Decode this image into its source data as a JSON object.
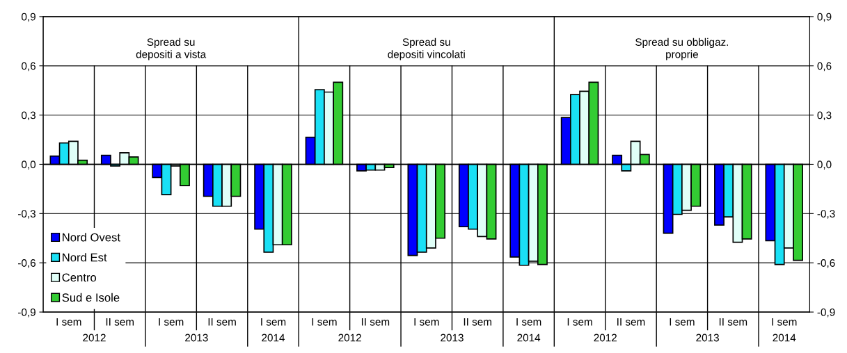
{
  "chart_data": {
    "type": "bar",
    "categories": [
      "I sem",
      "II sem",
      "I sem",
      "II sem",
      "I sem",
      "I sem",
      "II sem",
      "I sem",
      "II sem",
      "I sem",
      "I sem",
      "II sem",
      "I sem",
      "II sem",
      "I sem"
    ],
    "series": [
      {
        "name": "Nord Ovest",
        "color": "#0000ff",
        "values": [
          0.05,
          0.055,
          -0.08,
          -0.195,
          -0.395,
          0.165,
          -0.04,
          -0.555,
          -0.38,
          -0.565,
          0.285,
          0.055,
          -0.42,
          -0.37,
          -0.465
        ]
      },
      {
        "name": "Nord Est",
        "color": "#1ae0f5",
        "values": [
          0.13,
          -0.01,
          -0.185,
          -0.255,
          -0.535,
          0.455,
          -0.035,
          -0.535,
          -0.395,
          -0.615,
          0.425,
          -0.04,
          -0.305,
          -0.32,
          -0.61
        ]
      },
      {
        "name": "Centro",
        "color": "#e0fff8",
        "values": [
          0.14,
          0.07,
          -0.01,
          -0.255,
          -0.49,
          0.44,
          -0.035,
          -0.51,
          -0.44,
          -0.59,
          0.445,
          0.14,
          -0.28,
          -0.475,
          -0.51
        ]
      },
      {
        "name": "Sud e Isole",
        "color": "#33cc33",
        "values": [
          0.025,
          0.045,
          -0.13,
          -0.195,
          -0.49,
          0.5,
          -0.02,
          -0.45,
          -0.455,
          -0.61,
          0.5,
          0.06,
          -0.255,
          -0.455,
          -0.585
        ]
      }
    ],
    "annotations": [
      "Spread su\ndepositi a vista",
      "Spread su\ndepositi vincolati",
      "Spread su obbligaz.\nproprie",
      "2012",
      "2013",
      "2014",
      "2012",
      "2013",
      "2014",
      "2012",
      "2013",
      "2014"
    ],
    "ylim": [
      -0.9,
      0.9
    ],
    "yticks": [
      {
        "value": -0.9,
        "label": "-0,9"
      },
      {
        "value": -0.6,
        "label": "-0,6"
      },
      {
        "value": -0.3,
        "label": "-0,3"
      },
      {
        "value": 0.0,
        "label": "0,0"
      },
      {
        "value": 0.3,
        "label": "0,3"
      },
      {
        "value": 0.6,
        "label": "0,6"
      },
      {
        "value": 0.9,
        "label": "0,9"
      }
    ],
    "y2lim": [
      -0.9,
      0.9
    ],
    "y2ticks": [
      {
        "value": -0.9,
        "label": "-0,9"
      },
      {
        "value": -0.6,
        "label": "-0,6"
      },
      {
        "value": -0.3,
        "label": "-0,3"
      },
      {
        "value": 0.0,
        "label": "0,0"
      },
      {
        "value": 0.3,
        "label": "0,3"
      },
      {
        "value": 0.6,
        "label": "0,6"
      },
      {
        "value": 0.9,
        "label": "0,9"
      }
    ],
    "grid": "y",
    "legend": "bottom left"
  }
}
